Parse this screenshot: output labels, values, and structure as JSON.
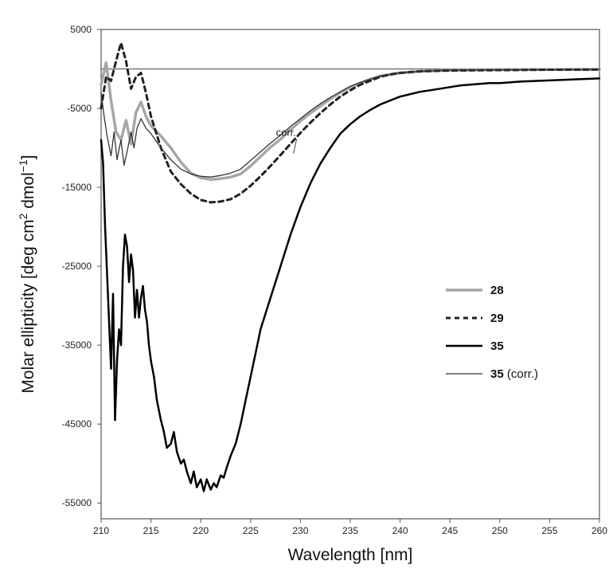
{
  "chart_data": {
    "type": "line",
    "title": "",
    "xlabel": "Wavelength [nm]",
    "ylabel_parts": {
      "main": "Molar ellipticity [deg cm",
      "sup1": "2",
      "mid": " dmol",
      "sup2": "−1",
      "end": "]"
    },
    "xlim": [
      210,
      260
    ],
    "ylim": [
      -57000,
      5000
    ],
    "xticks": [
      210,
      215,
      220,
      225,
      230,
      235,
      240,
      245,
      250,
      255,
      260
    ],
    "yticks": [
      5000,
      -5000,
      -15000,
      -25000,
      -35000,
      -45000,
      -55000
    ],
    "grid": false,
    "legend_position": "right",
    "annotation": {
      "text": "corr.",
      "x": 228.5,
      "y": -8500,
      "target_x": 229.3,
      "target_y": -10700
    },
    "series": [
      {
        "name": "28",
        "label_bold": "28",
        "label_rest": "",
        "color": "#a6a6a6",
        "dash": "",
        "width": 3.5,
        "x": [
          210,
          210.5,
          211,
          211.5,
          212,
          212.5,
          213,
          213.5,
          214,
          214.5,
          215,
          216,
          217,
          218,
          219,
          220,
          221,
          222,
          223,
          224,
          225,
          226,
          227,
          228,
          229,
          230,
          231,
          232,
          233,
          234,
          235,
          236,
          237,
          238,
          240,
          242,
          245,
          250,
          255,
          260
        ],
        "values": [
          -2000,
          800,
          -4000,
          -8000,
          -9000,
          -6500,
          -9500,
          -5500,
          -4200,
          -6000,
          -7200,
          -8500,
          -10000,
          -11800,
          -13200,
          -13800,
          -14000,
          -13900,
          -13700,
          -13300,
          -12300,
          -11100,
          -9900,
          -8900,
          -7700,
          -6600,
          -5600,
          -4700,
          -3800,
          -3000,
          -2300,
          -1800,
          -1300,
          -900,
          -500,
          -300,
          -150,
          -100,
          -80,
          -50
        ]
      },
      {
        "name": "29",
        "label_bold": "29",
        "label_rest": "",
        "color": "#222222",
        "dash": "6,5",
        "width": 3,
        "x": [
          210,
          210.5,
          211,
          211.5,
          212,
          212.5,
          213,
          213.5,
          214,
          214.5,
          215,
          216,
          217,
          218,
          219,
          220,
          221,
          222,
          223,
          224,
          225,
          226,
          227,
          228,
          229,
          230,
          231,
          232,
          233,
          234,
          235,
          236,
          237,
          238,
          239,
          240,
          242,
          245,
          250,
          255,
          260
        ],
        "values": [
          -5000,
          -1000,
          -1500,
          1000,
          3300,
          1000,
          -2500,
          -1000,
          -500,
          -3000,
          -6000,
          -10000,
          -13000,
          -14600,
          -15800,
          -16600,
          -16900,
          -16800,
          -16500,
          -15800,
          -14800,
          -13600,
          -12300,
          -10900,
          -9500,
          -8100,
          -6800,
          -5600,
          -4500,
          -3500,
          -2700,
          -2000,
          -1500,
          -1000,
          -700,
          -500,
          -300,
          -200,
          -150,
          -100,
          -80
        ]
      },
      {
        "name": "35",
        "label_bold": "35",
        "label_rest": "",
        "color": "#000000",
        "dash": "",
        "width": 2.5,
        "x": [
          210,
          210.2,
          210.4,
          210.6,
          210.8,
          211,
          211.2,
          211.4,
          211.6,
          211.8,
          212,
          212.2,
          212.4,
          212.6,
          212.8,
          213,
          213.2,
          213.4,
          213.6,
          213.8,
          214,
          214.2,
          214.4,
          214.6,
          214.8,
          215,
          215.3,
          215.6,
          216,
          216.3,
          216.6,
          217,
          217.3,
          217.6,
          218,
          218.3,
          218.6,
          219,
          219.3,
          219.6,
          220,
          220.3,
          220.6,
          221,
          221.3,
          221.6,
          222,
          222.3,
          222.6,
          223,
          223.5,
          224,
          224.5,
          225,
          225.5,
          226,
          227,
          228,
          229,
          230,
          231,
          232,
          233,
          234,
          235,
          236,
          237,
          238,
          239,
          240,
          241,
          242,
          243,
          244,
          245,
          246,
          247,
          248,
          249,
          250,
          251,
          252,
          254,
          256,
          258,
          260
        ],
        "values": [
          -9000,
          -12000,
          -20000,
          -26000,
          -32000,
          -38000,
          -28500,
          -44500,
          -37000,
          -33000,
          -35000,
          -25000,
          -21000,
          -22500,
          -27000,
          -23500,
          -25500,
          -31500,
          -28000,
          -31500,
          -29000,
          -27500,
          -30500,
          -32000,
          -35000,
          -37000,
          -39000,
          -42000,
          -44500,
          -46000,
          -48000,
          -47500,
          -46000,
          -48500,
          -50000,
          -49500,
          -51000,
          -52500,
          -51000,
          -53000,
          -52000,
          -53500,
          -52000,
          -53300,
          -52500,
          -53000,
          -51500,
          -51800,
          -50500,
          -49000,
          -47500,
          -45000,
          -42000,
          -39000,
          -36000,
          -33000,
          -29000,
          -25000,
          -21000,
          -17500,
          -14500,
          -12000,
          -10000,
          -8200,
          -7000,
          -6000,
          -5200,
          -4500,
          -4000,
          -3500,
          -3200,
          -2900,
          -2700,
          -2500,
          -2300,
          -2100,
          -2000,
          -1900,
          -1800,
          -1800,
          -1700,
          -1600,
          -1500,
          -1400,
          -1300,
          -1200
        ]
      },
      {
        "name": "35 (corr.)",
        "label_bold": "35",
        "label_rest": " (corr.)",
        "color": "#333333",
        "dash": "",
        "width": 1.3,
        "x": [
          210,
          210.3,
          210.6,
          211,
          211.3,
          211.6,
          212,
          212.3,
          212.6,
          213,
          213.3,
          213.6,
          214,
          214.5,
          215,
          216,
          217,
          218,
          219,
          220,
          221,
          222,
          223,
          224,
          225,
          226,
          227,
          228,
          229,
          230,
          231,
          232,
          233,
          234,
          235,
          236,
          237,
          238,
          240,
          242,
          245,
          250,
          255,
          260
        ],
        "values": [
          -3000,
          -6000,
          -8500,
          -11000,
          -8000,
          -11500,
          -9000,
          -12200,
          -10500,
          -8000,
          -10000,
          -7500,
          -6300,
          -7500,
          -8200,
          -10000,
          -11500,
          -12700,
          -13300,
          -13600,
          -13700,
          -13500,
          -13200,
          -12700,
          -11600,
          -10500,
          -9400,
          -8400,
          -7300,
          -6300,
          -5300,
          -4400,
          -3600,
          -2900,
          -2200,
          -1700,
          -1300,
          -900,
          -500,
          -300,
          -150,
          -100,
          -80,
          -50
        ]
      }
    ]
  }
}
